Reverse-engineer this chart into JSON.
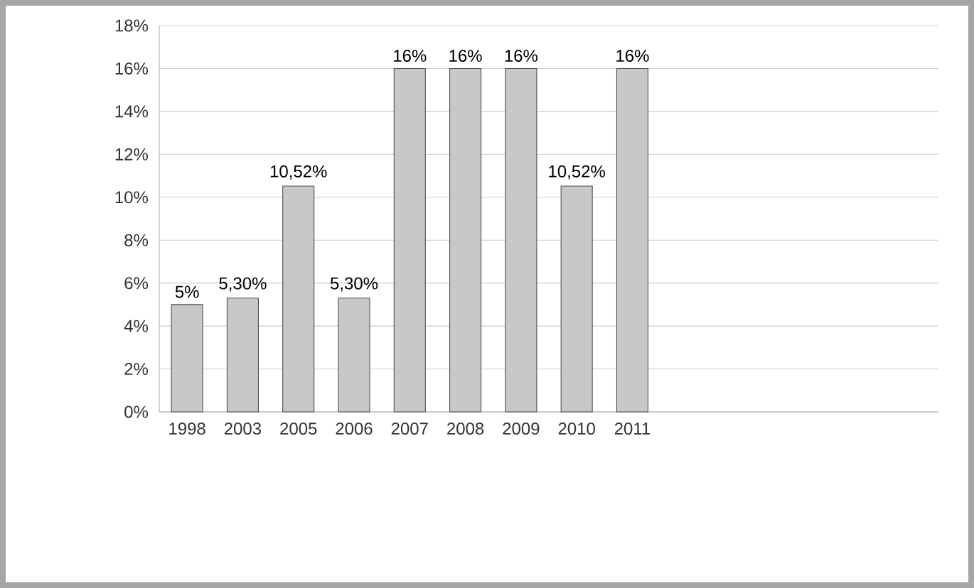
{
  "chart_data": {
    "type": "bar",
    "categories": [
      "1998",
      "2003",
      "2005",
      "2006",
      "2007",
      "2008",
      "2009",
      "2010",
      "2011",
      null,
      null,
      null,
      null,
      null
    ],
    "values": [
      5,
      5.3,
      10.52,
      5.3,
      16,
      16,
      16,
      10.52,
      16,
      null,
      null,
      null,
      null,
      null
    ],
    "value_labels": [
      "5%",
      "5,30%",
      "10,52%",
      "5,30%",
      "16%",
      "16%",
      "16%",
      "10,52%",
      "16%",
      null,
      null,
      null,
      null,
      null
    ],
    "color": "#c8c8c8",
    "ylim": [
      0,
      18
    ],
    "yticks": [
      {
        "value": 0,
        "label": "0%"
      },
      {
        "value": 2,
        "label": "2%"
      },
      {
        "value": 4,
        "label": "4%"
      },
      {
        "value": 6,
        "label": "6%"
      },
      {
        "value": 8,
        "label": "8%"
      },
      {
        "value": 10,
        "label": "10%"
      },
      {
        "value": 12,
        "label": "12%"
      },
      {
        "value": 14,
        "label": "14%"
      },
      {
        "value": 16,
        "label": "16%"
      },
      {
        "value": 18,
        "label": "18%"
      }
    ],
    "grid": "y"
  }
}
